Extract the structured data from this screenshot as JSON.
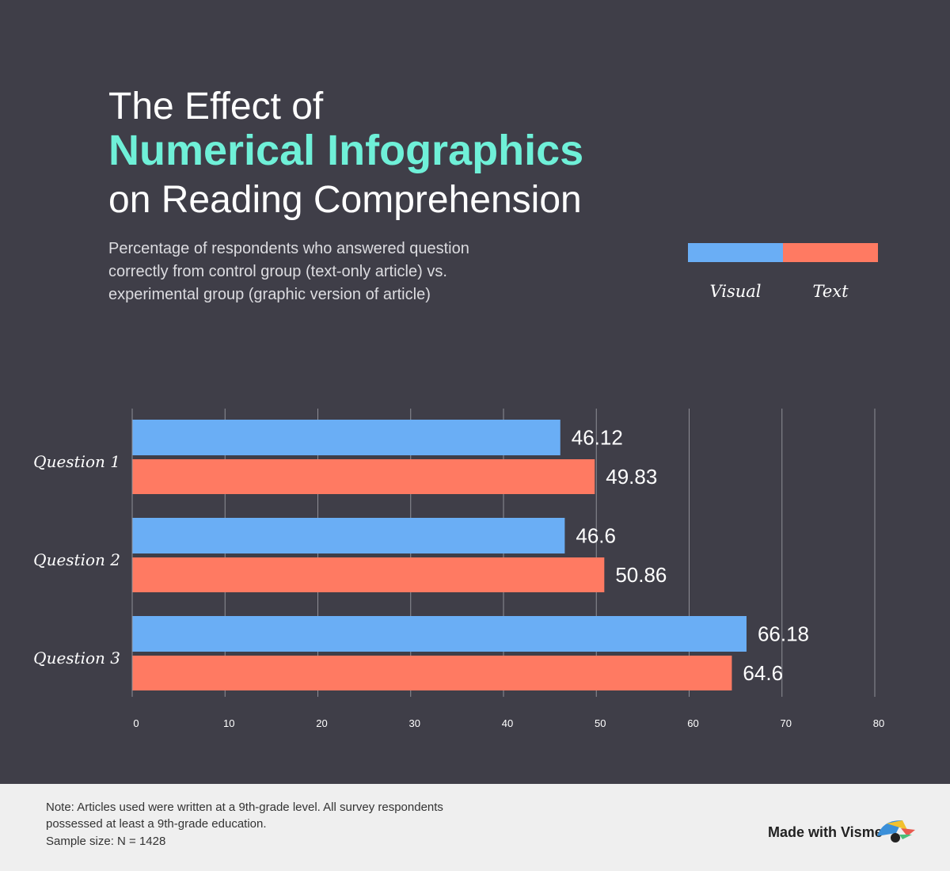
{
  "chart_data": {
    "type": "bar",
    "title": [
      "The Effect of",
      "Numerical Infographics",
      "on Reading Comprehension"
    ],
    "subtitle": [
      "Percentage of respondents who answered question",
      "correctly from control group (text-only article) vs.",
      "experimental group (graphic version of article)"
    ],
    "categories": [
      "Question 1",
      "Question 2",
      "Question 3"
    ],
    "series": [
      {
        "name": "Visual",
        "color": "#6aaef5",
        "values": [
          46.12,
          46.6,
          66.18
        ]
      },
      {
        "name": "Text",
        "color": "#ff7a62",
        "values": [
          49.83,
          50.86,
          64.6
        ]
      }
    ],
    "xlim": [
      0,
      80
    ],
    "xticks": [
      0,
      10,
      20,
      30,
      40,
      50,
      60,
      70,
      80
    ],
    "grid": true,
    "note": [
      "Note: Articles used were written at a 9th-grade level. All survey respondents",
      "possessed at least a 9th-grade education.",
      "Sample size: N = 1428"
    ],
    "branding": "Made with Visme"
  }
}
